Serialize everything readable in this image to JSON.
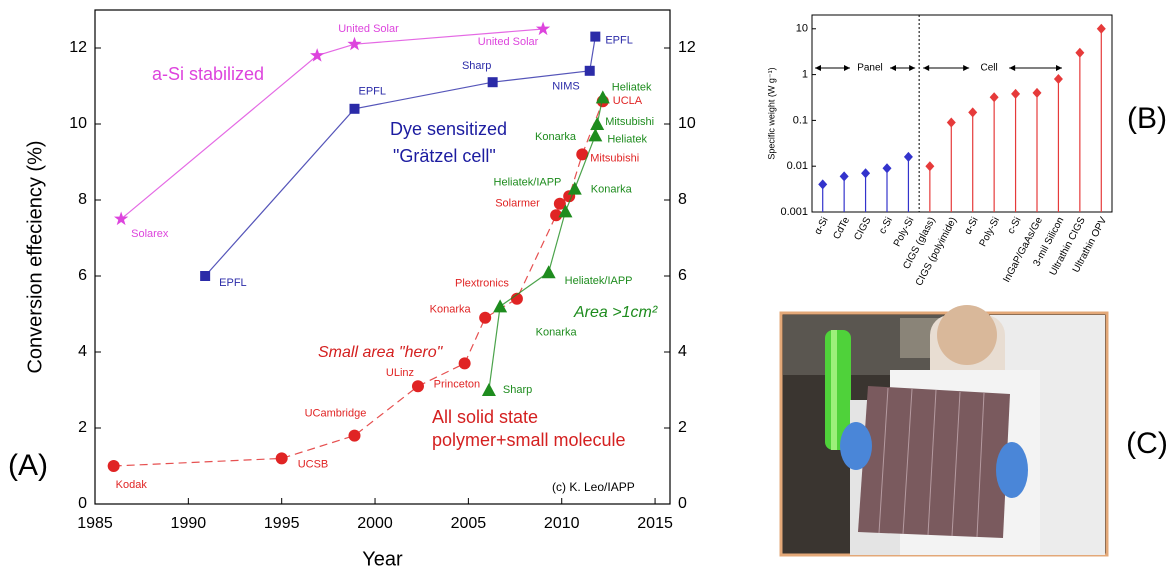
{
  "panel_labels": [
    "(A)",
    "(B)",
    "(C)"
  ],
  "chart_data": [
    {
      "type": "line",
      "x_label": "Year",
      "y_label": "Conversion effeciency (%)",
      "xlim": [
        1985,
        2015.8
      ],
      "xticks": [
        1985,
        1990,
        1995,
        2000,
        2005,
        2010,
        2015
      ],
      "ylim": [
        0,
        13
      ],
      "yticks": [
        0,
        2,
        4,
        6,
        8,
        10,
        12
      ],
      "y2lim": [
        0,
        13
      ],
      "y2ticks": [
        0,
        2,
        4,
        6,
        8,
        10,
        12
      ],
      "series": [
        {
          "color": "#dd44dd",
          "marker": "star",
          "line_style": "solid",
          "x": [
            1986.4,
            1996.9,
            1998.9,
            2009.0
          ],
          "values": [
            7.5,
            11.8,
            12.1,
            12.5
          ],
          "labels": [
            "Solarex",
            null,
            "United Solar",
            "United Solar"
          ]
        },
        {
          "color": "#2b2ba8",
          "marker": "square",
          "line_style": "solid",
          "x": [
            1990.9,
            1998.9,
            2006.3,
            2011.5,
            2011.8
          ],
          "values": [
            6.0,
            10.4,
            11.1,
            11.4,
            12.3
          ],
          "labels": [
            "EPFL",
            "EPFL",
            "Sharp",
            "NIMS",
            "EPFL"
          ]
        },
        {
          "color": "#e02424",
          "marker": "circle",
          "line_style": "dashed",
          "x": [
            1986.0,
            1995.0,
            1998.9,
            2002.3,
            2004.8,
            2005.9,
            2007.6,
            2009.7,
            2009.9,
            2010.4,
            2011.1,
            2012.2
          ],
          "values": [
            1.0,
            1.2,
            1.8,
            3.1,
            3.7,
            4.9,
            5.4,
            7.6,
            7.9,
            8.1,
            9.2,
            10.6
          ],
          "labels": [
            "Kodak",
            "UCSB",
            "UCambridge",
            "ULinz",
            "Princeton",
            "Konarka",
            "Plextronics",
            null,
            "Solarmer",
            null,
            "Mitsubishi",
            "UCLA"
          ]
        },
        {
          "color": "#1e8c1e",
          "marker": "triangle",
          "line_style": "solid",
          "x": [
            2006.1,
            2006.7,
            2009.3,
            2010.2,
            2010.7,
            2011.8,
            2011.9,
            2012.2
          ],
          "values": [
            3.0,
            5.2,
            6.1,
            7.7,
            8.3,
            9.7,
            10.0,
            10.7
          ],
          "labels": [
            "Sharp",
            "Konarka",
            "Heliatek/IAPP",
            "Heliatek/IAPP",
            "Konarka",
            "Heliatek",
            "Mitsubishi",
            "Heliatek"
          ]
        }
      ],
      "annotations": [
        {
          "text": "a-Si stabilized",
          "color": "#dd44dd"
        },
        {
          "text": "Dye sensitized",
          "color": "#1c1ca0"
        },
        {
          "text": "\"Grätzel cell\"",
          "color": "#1c1ca0"
        },
        {
          "text": "Small area \"hero\"",
          "color": "#d42020"
        },
        {
          "text": "All solid state",
          "color": "#d42020"
        },
        {
          "text": "polymer+small molecule",
          "color": "#d42020"
        },
        {
          "text": "Area >1cm²",
          "color": "#1e8c1e"
        },
        {
          "text": "Konarka",
          "color": "#1e8c1e"
        },
        {
          "text": "(c) K. Leo/IAPP",
          "color": "#000000"
        }
      ]
    },
    {
      "type": "stem",
      "log_y": true,
      "y_label": "Specific weight (W g⁻¹)",
      "ylim": [
        0.001,
        20
      ],
      "yticks": [
        0.001,
        0.01,
        0.1,
        1,
        10
      ],
      "categories": [
        "α-Si",
        "CdTe",
        "CIGS",
        "c-Si",
        "Poly-Si",
        "CIGS (glass)",
        "CIGS (polyimide)",
        "α-Si",
        "Poly-Si",
        "c-Si",
        "InGaP/GaAs/Ge",
        "3-mil Silicon",
        "Ultrathin CIGS",
        "Ultrathin OPV"
      ],
      "series": [
        {
          "color": "#3333cc",
          "values": [
            0.004,
            0.006,
            0.007,
            0.009,
            0.016,
            null,
            null,
            null,
            null,
            null,
            null,
            null,
            null,
            null
          ]
        },
        {
          "color": "#e63a3a",
          "values": [
            null,
            null,
            null,
            null,
            null,
            0.01,
            0.09,
            0.15,
            0.32,
            0.38,
            0.4,
            0.8,
            3,
            10
          ]
        }
      ],
      "annotations": [
        {
          "text": "Panel"
        },
        {
          "text": "Cell"
        }
      ]
    }
  ]
}
